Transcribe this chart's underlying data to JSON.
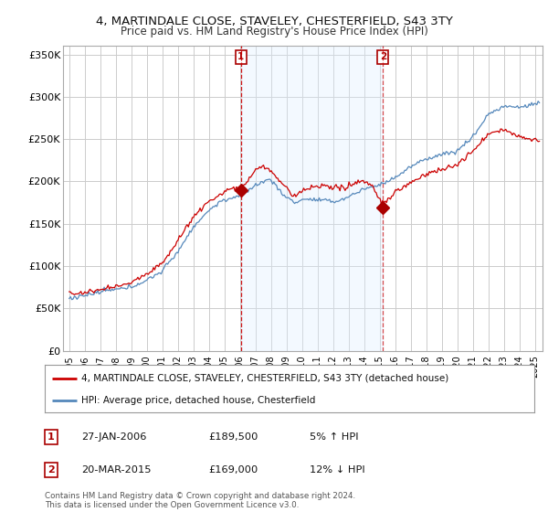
{
  "title": "4, MARTINDALE CLOSE, STAVELEY, CHESTERFIELD, S43 3TY",
  "subtitle": "Price paid vs. HM Land Registry's House Price Index (HPI)",
  "ylabel_ticks": [
    "£0",
    "£50K",
    "£100K",
    "£150K",
    "£200K",
    "£250K",
    "£300K",
    "£350K"
  ],
  "ytick_values": [
    0,
    50000,
    100000,
    150000,
    200000,
    250000,
    300000,
    350000
  ],
  "ylim": [
    0,
    360000
  ],
  "xlim_start": 1994.6,
  "xlim_end": 2025.5,
  "marker1_x": 2006.07,
  "marker1_y": 189500,
  "marker2_x": 2015.22,
  "marker2_y": 169000,
  "marker1_label": "1",
  "marker1_date": "27-JAN-2006",
  "marker1_price": "£189,500",
  "marker1_hpi": "5% ↑ HPI",
  "marker2_label": "2",
  "marker2_date": "20-MAR-2015",
  "marker2_price": "£169,000",
  "marker2_hpi": "12% ↓ HPI",
  "line1_color": "#cc0000",
  "line2_color": "#5588bb",
  "shade_color": "#ddeeff",
  "marker_color": "#aa0000",
  "grid_color": "#cccccc",
  "bg_color": "#ffffff",
  "legend1_label": "4, MARTINDALE CLOSE, STAVELEY, CHESTERFIELD, S43 3TY (detached house)",
  "legend2_label": "HPI: Average price, detached house, Chesterfield",
  "footer": "Contains HM Land Registry data © Crown copyright and database right 2024.\nThis data is licensed under the Open Government Licence v3.0.",
  "title_fontsize": 9.5,
  "subtitle_fontsize": 8.5
}
